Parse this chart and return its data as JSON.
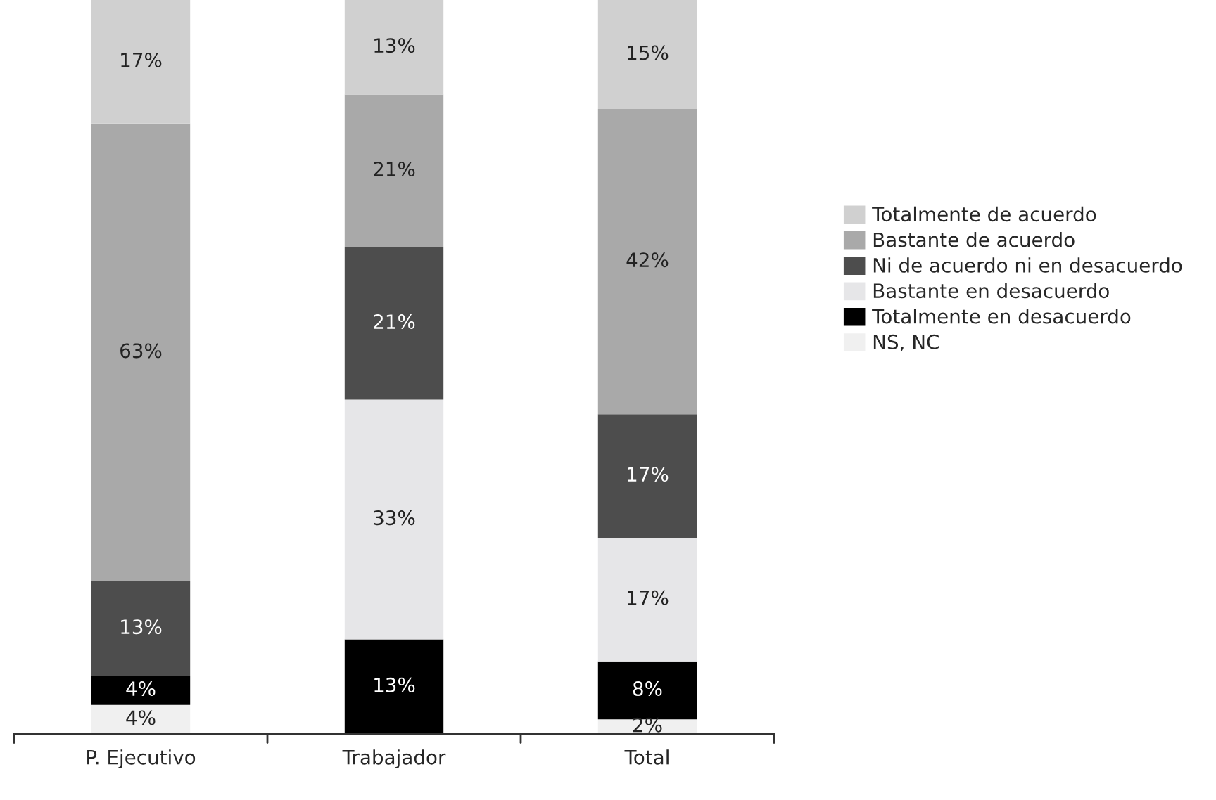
{
  "chart_data": {
    "type": "bar",
    "stacked": true,
    "categories": [
      "P. Ejecutivo",
      "Trabajador",
      "Total"
    ],
    "series": [
      {
        "name": "NS, NC",
        "color": "#f0f0f0",
        "values": [
          4,
          0,
          2
        ],
        "value_labels": [
          "4%",
          null,
          "2%"
        ]
      },
      {
        "name": "Totalmente en desacuerdo",
        "color": "#000000",
        "values": [
          4,
          13,
          8
        ],
        "value_labels": [
          "4%",
          "13%",
          "8%"
        ]
      },
      {
        "name": "Bastante en desacuerdo",
        "color": "#e6e6e8",
        "values": [
          0,
          33,
          17
        ],
        "value_labels": [
          null,
          "33%",
          "17%"
        ]
      },
      {
        "name": "Ni de acuerdo ni en desacuerdo",
        "color": "#4d4d4d",
        "values": [
          13,
          21,
          17
        ],
        "value_labels": [
          "13%",
          "21%",
          "17%"
        ]
      },
      {
        "name": "Bastante de acuerdo",
        "color": "#a9a9a9",
        "values": [
          63,
          21,
          42
        ],
        "value_labels": [
          "63%",
          "21%",
          "42%"
        ]
      },
      {
        "name": "Totalmente de acuerdo",
        "color": "#d0d0d0",
        "values": [
          17,
          13,
          15
        ],
        "value_labels": [
          "17%",
          "13%",
          "15%"
        ]
      }
    ],
    "legend": "right",
    "grid": false
  }
}
